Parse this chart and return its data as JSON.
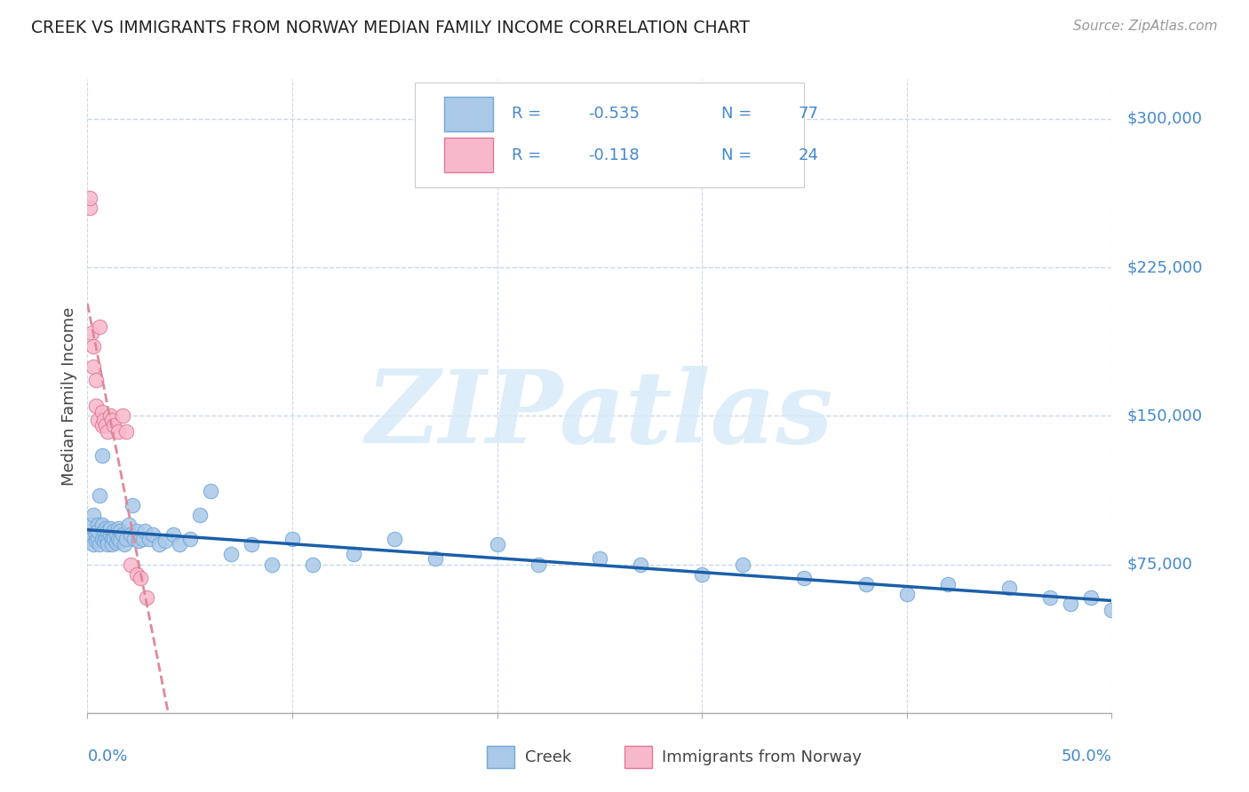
{
  "title": "CREEK VS IMMIGRANTS FROM NORWAY MEDIAN FAMILY INCOME CORRELATION CHART",
  "source": "Source: ZipAtlas.com",
  "ylabel": "Median Family Income",
  "xmin": 0.0,
  "xmax": 0.5,
  "ymin": 0,
  "ymax": 320000,
  "creek_color": "#aac8e8",
  "creek_edge_color": "#70a8d8",
  "norway_color": "#f8b8cc",
  "norway_edge_color": "#e07898",
  "creek_line_color": "#1a5fa8",
  "norway_line_color": "#e08898",
  "ytick_vals": [
    75000,
    150000,
    225000,
    300000
  ],
  "ytick_labels": [
    "$75,000",
    "$150,000",
    "$225,000",
    "$300,000"
  ],
  "xtick_label_left": "0.0%",
  "xtick_label_right": "50.0%",
  "legend_r1": "-0.535",
  "legend_n1": "77",
  "legend_r2": "-0.118",
  "legend_n2": "24",
  "grid_color": "#c8d8ea",
  "background_color": "#ffffff",
  "text_color_blue": "#4488cc",
  "text_color_dark": "#444444",
  "watermark_color": "#d8eaf8",
  "creek_x": [
    0.001,
    0.002,
    0.002,
    0.003,
    0.003,
    0.004,
    0.004,
    0.005,
    0.005,
    0.005,
    0.006,
    0.006,
    0.007,
    0.007,
    0.007,
    0.008,
    0.008,
    0.009,
    0.009,
    0.01,
    0.01,
    0.01,
    0.011,
    0.011,
    0.012,
    0.012,
    0.013,
    0.013,
    0.014,
    0.014,
    0.015,
    0.015,
    0.016,
    0.016,
    0.017,
    0.018,
    0.019,
    0.02,
    0.021,
    0.022,
    0.023,
    0.024,
    0.025,
    0.027,
    0.028,
    0.03,
    0.032,
    0.035,
    0.038,
    0.042,
    0.045,
    0.05,
    0.055,
    0.06,
    0.07,
    0.08,
    0.09,
    0.1,
    0.11,
    0.13,
    0.15,
    0.17,
    0.2,
    0.22,
    0.25,
    0.27,
    0.3,
    0.32,
    0.35,
    0.38,
    0.4,
    0.42,
    0.45,
    0.47,
    0.48,
    0.49,
    0.5
  ],
  "creek_y": [
    92000,
    88000,
    95000,
    85000,
    100000,
    90000,
    87000,
    95000,
    88000,
    92000,
    110000,
    85000,
    130000,
    88000,
    95000,
    92000,
    87000,
    88000,
    93000,
    92000,
    87000,
    85000,
    90000,
    93000,
    88000,
    85000,
    92000,
    88000,
    90000,
    86000,
    93000,
    88000,
    92000,
    87000,
    90000,
    85000,
    88000,
    95000,
    90000,
    105000,
    88000,
    92000,
    87000,
    88000,
    92000,
    88000,
    90000,
    85000,
    87000,
    90000,
    85000,
    88000,
    100000,
    112000,
    80000,
    85000,
    75000,
    88000,
    75000,
    80000,
    88000,
    78000,
    85000,
    75000,
    78000,
    75000,
    70000,
    75000,
    68000,
    65000,
    60000,
    65000,
    63000,
    58000,
    55000,
    58000,
    52000
  ],
  "norway_x": [
    0.001,
    0.001,
    0.002,
    0.003,
    0.003,
    0.004,
    0.004,
    0.005,
    0.006,
    0.007,
    0.007,
    0.008,
    0.009,
    0.01,
    0.011,
    0.012,
    0.013,
    0.015,
    0.017,
    0.019,
    0.021,
    0.024,
    0.026,
    0.029
  ],
  "norway_y": [
    255000,
    260000,
    192000,
    185000,
    175000,
    168000,
    155000,
    148000,
    195000,
    152000,
    145000,
    148000,
    145000,
    142000,
    150000,
    148000,
    145000,
    142000,
    150000,
    142000,
    75000,
    70000,
    68000,
    58000
  ]
}
